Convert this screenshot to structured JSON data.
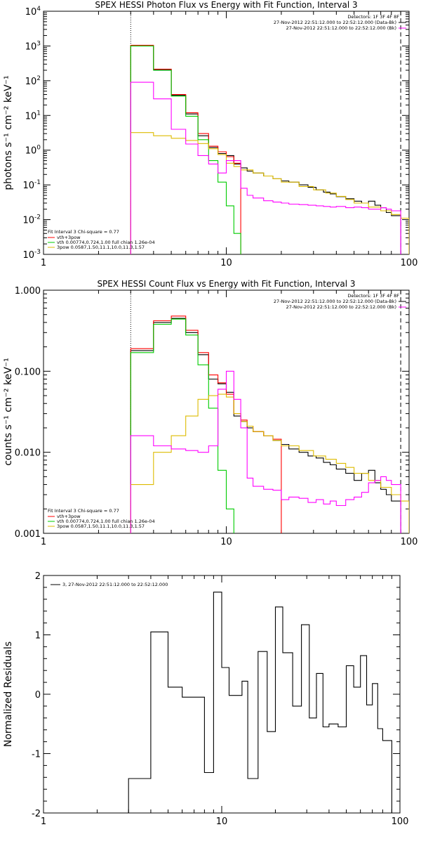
{
  "chart_data": [
    {
      "type": "line",
      "title": "SPEX HESSI Photon Flux vs Energy with Fit Function, Interval 3",
      "xlabel": "",
      "ylabel": "photons s⁻¹ cm⁻² keV⁻¹",
      "xscale": "log",
      "yscale": "log",
      "xlim": [
        1,
        100
      ],
      "ylim": [
        0.001,
        10000
      ],
      "x_ticks": [
        1,
        10,
        100
      ],
      "x_tick_labels": [
        "1",
        "10",
        "100"
      ],
      "y_ticks": [
        0.001,
        0.01,
        0.1,
        1,
        10,
        100,
        1000,
        10000
      ],
      "y_tick_labels": [
        [
          "10",
          "-3"
        ],
        [
          "10",
          "-2"
        ],
        [
          "10",
          "-1"
        ],
        [
          "10",
          "0"
        ],
        [
          "10",
          "1"
        ],
        [
          "10",
          "2"
        ],
        [
          "10",
          "3"
        ],
        [
          "10",
          "4"
        ]
      ],
      "vlines": [
        {
          "x": 3.0,
          "style": "dotted"
        },
        {
          "x": 90.0,
          "style": "dashed"
        }
      ],
      "legend_top_right": {
        "header": "Detectors: 1F 3F 4F 8F",
        "lines": [
          {
            "text": "27-Nov-2012 22:51:12.000 to 22:52:12.000 (Data-Bk)",
            "color": "#000000"
          },
          {
            "text": "27-Nov-2012 22:51:12.000 to 22:52:12.000 (Bk)",
            "color": "#ff00ff"
          }
        ]
      },
      "legend_bottom_left": {
        "header": "Fit Interval 3   Chi-square = 0.77",
        "lines": [
          {
            "text": "vth+3pow",
            "color": "#ff0000"
          },
          {
            "text": "vth 0.00774,0.724,1.00  full chian 1.26e-04",
            "color": "#00cc00"
          },
          {
            "text": "3pow 0.0587,1.50,11.1,10.0,11.3,1.57",
            "color": "#ddbb00"
          }
        ]
      },
      "series": [
        {
          "name": "Data-Bk",
          "color": "#000000",
          "edges": [
            3.0,
            4.0,
            5.0,
            6.0,
            7.0,
            8.0,
            9.0,
            10.0,
            11.0,
            12.0,
            13.0,
            14.0,
            16.0,
            18.0,
            20.0,
            22.0,
            25.0,
            28.0,
            31.0,
            34.0,
            37.0,
            40.0,
            45.0,
            50.0,
            55.0,
            60.0,
            65.0,
            70.0,
            75.0,
            80.0,
            90.0
          ],
          "values": [
            1000,
            210,
            38,
            11,
            2.6,
            1.2,
            0.8,
            0.7,
            0.4,
            0.31,
            0.25,
            0.22,
            0.18,
            0.15,
            0.13,
            0.12,
            0.1,
            0.085,
            0.072,
            0.062,
            0.055,
            0.046,
            0.04,
            0.034,
            0.03,
            0.034,
            0.026,
            0.022,
            0.016,
            0.013
          ]
        },
        {
          "name": "vth+3pow",
          "color": "#ff0000",
          "edges": [
            3.0,
            4.0,
            5.0,
            6.0,
            7.0,
            8.0,
            9.0,
            10.0,
            11.0,
            12.0
          ],
          "values": [
            1050,
            215,
            40,
            12,
            3.0,
            1.3,
            0.9,
            0.65,
            0.42
          ]
        },
        {
          "name": "vth",
          "color": "#00cc00",
          "edges": [
            3.0,
            4.0,
            5.0,
            6.0,
            7.0,
            8.0,
            9.0,
            10.0,
            11.0,
            12.0
          ],
          "values": [
            1000,
            200,
            36,
            9.5,
            2.0,
            0.5,
            0.12,
            0.025,
            0.004
          ]
        },
        {
          "name": "3pow",
          "color": "#ddbb00",
          "edges": [
            3.0,
            4.0,
            5.0,
            6.0,
            7.0,
            8.0,
            9.0,
            10.0,
            11.0,
            12.0,
            14.0,
            16.0,
            18.0,
            20.0,
            25.0,
            30.0,
            35.0,
            40.0,
            45.0,
            50.0,
            60.0,
            70.0,
            80.0,
            90.0,
            100.0
          ],
          "values": [
            3.2,
            2.6,
            2.2,
            1.9,
            1.55,
            1.1,
            0.75,
            0.42,
            0.34,
            0.27,
            0.22,
            0.18,
            0.15,
            0.12,
            0.09,
            0.072,
            0.058,
            0.047,
            0.038,
            0.03,
            0.023,
            0.018,
            0.014,
            0.011
          ]
        },
        {
          "name": "Bk",
          "color": "#ff00ff",
          "edges": [
            3.0,
            4.0,
            5.0,
            6.0,
            7.0,
            8.0,
            9.0,
            10.0,
            11.0,
            12.0,
            13.0,
            14.0,
            16.0,
            18.0,
            20.0,
            22.0,
            25.0,
            28.0,
            31.0,
            34.0,
            37.0,
            40.0,
            45.0,
            50.0,
            55.0,
            60.0,
            65.0,
            70.0,
            75.0,
            80.0,
            90.0
          ],
          "values": [
            90,
            30,
            4,
            1.5,
            0.7,
            0.4,
            0.22,
            0.5,
            0.5,
            0.08,
            0.05,
            0.042,
            0.035,
            0.032,
            0.03,
            0.028,
            0.027,
            0.026,
            0.025,
            0.024,
            0.023,
            0.024,
            0.022,
            0.023,
            0.022,
            0.02,
            0.02,
            0.022,
            0.02,
            0.018
          ]
        }
      ]
    },
    {
      "type": "line",
      "title": "SPEX HESSI Count Flux vs Energy with Fit Function, Interval 3",
      "xlabel": "",
      "ylabel": "counts s⁻¹ cm⁻² keV⁻¹",
      "xscale": "log",
      "yscale": "log",
      "xlim": [
        1,
        100
      ],
      "ylim": [
        0.001,
        1.0
      ],
      "x_ticks": [
        1,
        10,
        100
      ],
      "x_tick_labels": [
        "1",
        "10",
        "100"
      ],
      "y_ticks": [
        0.001,
        0.01,
        0.1,
        1.0
      ],
      "y_tick_labels": [
        "0.001",
        "0.010",
        "0.100",
        "1.000"
      ],
      "vlines": [
        {
          "x": 3.0,
          "style": "dotted"
        },
        {
          "x": 90.0,
          "style": "dashed"
        }
      ],
      "legend_top_right": {
        "header": "Detectors: 1F 3F 4F 8F",
        "lines": [
          {
            "text": "27-Nov-2012 22:51:12.000 to 22:52:12.000 (Data-Bk)",
            "color": "#000000"
          },
          {
            "text": "27-Nov-2012 22:51:12.000 to 22:52:12.000 (Bk)",
            "color": "#ff00ff"
          }
        ]
      },
      "legend_bottom_left": {
        "header": "Fit Interval 3   Chi-square = 0.77",
        "lines": [
          {
            "text": "vth+3pow",
            "color": "#ff0000"
          },
          {
            "text": "vth 0.00774,0.724,1.00  full chian 1.26e-04",
            "color": "#00cc00"
          },
          {
            "text": "3pow 0.0587,1.50,11.1,10.0,11.3,1.57",
            "color": "#ddbb00"
          }
        ]
      },
      "series": [
        {
          "name": "Data-Bk",
          "color": "#000000",
          "edges": [
            3.0,
            4.0,
            5.0,
            6.0,
            7.0,
            8.0,
            9.0,
            10.0,
            11.0,
            12.0,
            13.0,
            14.0,
            16.0,
            18.0,
            20.0,
            22.0,
            25.0,
            28.0,
            31.0,
            34.0,
            37.0,
            40.0,
            45.0,
            50.0,
            55.0,
            60.0,
            65.0,
            70.0,
            75.0,
            80.0,
            90.0
          ],
          "values": [
            0.18,
            0.4,
            0.45,
            0.3,
            0.16,
            0.08,
            0.07,
            0.055,
            0.028,
            0.024,
            0.02,
            0.018,
            0.016,
            0.014,
            0.0125,
            0.011,
            0.01,
            0.009,
            0.0085,
            0.0075,
            0.007,
            0.0062,
            0.0055,
            0.0045,
            0.0055,
            0.006,
            0.0042,
            0.0035,
            0.003,
            0.0025
          ]
        },
        {
          "name": "vth+3pow",
          "color": "#ff0000",
          "edges": [
            3.0,
            4.0,
            5.0,
            6.0,
            7.0,
            8.0,
            9.0,
            10.0,
            11.0,
            12.0,
            13.0,
            14.0,
            16.0,
            18.0,
            20.0
          ],
          "values": [
            0.19,
            0.42,
            0.48,
            0.32,
            0.17,
            0.09,
            0.072,
            0.052,
            0.03,
            0.025,
            0.021,
            0.018,
            0.016,
            0.0145
          ]
        },
        {
          "name": "vth",
          "color": "#00cc00",
          "edges": [
            3.0,
            4.0,
            5.0,
            6.0,
            7.0,
            8.0,
            9.0,
            10.0,
            11.0,
            12.0
          ],
          "values": [
            0.17,
            0.38,
            0.44,
            0.28,
            0.12,
            0.035,
            0.006,
            0.002,
            0.0009
          ]
        },
        {
          "name": "3pow",
          "color": "#ddbb00",
          "edges": [
            3.0,
            4.0,
            5.0,
            6.0,
            7.0,
            8.0,
            9.0,
            10.0,
            11.0,
            12.0,
            13.0,
            14.0,
            16.0,
            18.0,
            20.0,
            25.0,
            30.0,
            35.0,
            40.0,
            45.0,
            50.0,
            60.0,
            70.0,
            80.0,
            90.0,
            100.0
          ],
          "values": [
            0.004,
            0.01,
            0.016,
            0.028,
            0.045,
            0.05,
            0.052,
            0.048,
            0.03,
            0.024,
            0.021,
            0.018,
            0.016,
            0.014,
            0.012,
            0.0105,
            0.009,
            0.0082,
            0.0073,
            0.0065,
            0.0055,
            0.0045,
            0.0037,
            0.003,
            0.0025
          ]
        },
        {
          "name": "Bk",
          "color": "#ff00ff",
          "edges": [
            3.0,
            4.0,
            5.0,
            6.0,
            7.0,
            8.0,
            9.0,
            10.0,
            11.0,
            12.0,
            13.0,
            14.0,
            16.0,
            18.0,
            20.0,
            22.0,
            25.0,
            28.0,
            31.0,
            34.0,
            37.0,
            40.0,
            45.0,
            50.0,
            55.0,
            60.0,
            65.0,
            70.0,
            75.0,
            80.0,
            90.0
          ],
          "values": [
            0.016,
            0.012,
            0.011,
            0.0105,
            0.01,
            0.012,
            0.06,
            0.1,
            0.045,
            0.02,
            0.0048,
            0.0038,
            0.0035,
            0.0034,
            0.0026,
            0.0028,
            0.0027,
            0.0024,
            0.0026,
            0.0023,
            0.0025,
            0.0022,
            0.0026,
            0.0028,
            0.0032,
            0.0042,
            0.0045,
            0.005,
            0.0045,
            0.004
          ]
        }
      ]
    },
    {
      "type": "line",
      "title": "",
      "xlabel": "",
      "ylabel": "Normalized Residuals",
      "xscale": "log",
      "yscale": "linear",
      "xlim": [
        1,
        100
      ],
      "ylim": [
        -2,
        2
      ],
      "x_ticks": [
        1,
        10,
        100
      ],
      "x_tick_labels": [
        "1",
        "10",
        "100"
      ],
      "y_ticks": [
        -2,
        -1,
        0,
        1,
        2
      ],
      "y_tick_labels": [
        "-2",
        "-1",
        "0",
        "1",
        "2"
      ],
      "legend_top_left": {
        "lines": [
          {
            "text": "3, 27-Nov-2012 22:51:12.000 to 22:52:12.000",
            "color": "#000000"
          }
        ]
      },
      "series": [
        {
          "name": "",
          "color": "#000000",
          "edges": [
            3.0,
            4.0,
            5.0,
            6.0,
            7.0,
            8.0,
            9.0,
            10.0,
            11.0,
            12.0,
            13.0,
            14.0,
            16.0,
            18.0,
            20.0,
            22.0,
            25.0,
            28.0,
            31.0,
            34.0,
            37.0,
            40.0,
            45.0,
            50.0,
            55.0,
            60.0,
            65.0,
            70.0,
            75.0,
            80.0,
            90.0
          ],
          "values": [
            -1.42,
            1.05,
            0.12,
            -0.05,
            -0.05,
            -1.32,
            1.72,
            0.45,
            -0.02,
            -0.02,
            0.22,
            -1.42,
            0.72,
            -0.63,
            1.47,
            0.7,
            -0.2,
            1.17,
            -0.4,
            0.35,
            -0.55,
            -0.5,
            -0.55,
            0.48,
            0.12,
            0.65,
            -0.18,
            0.18,
            -0.58,
            -0.78
          ]
        }
      ]
    }
  ]
}
